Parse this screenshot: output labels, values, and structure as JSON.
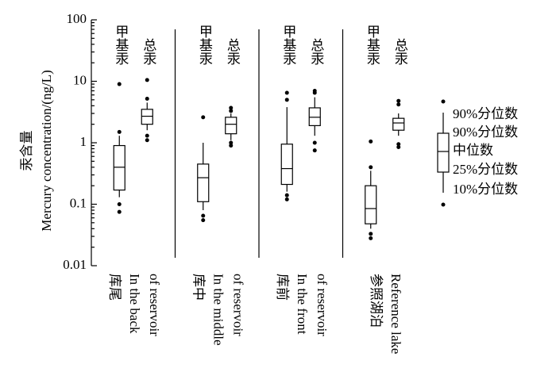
{
  "chart_data": {
    "type": "box",
    "y_label": [
      "汞含量",
      "Mercury concentration/(ng/L)"
    ],
    "log_scale": true,
    "ylim": [
      0.01,
      100
    ],
    "yticks": [
      100,
      10,
      1,
      0.1,
      0.01
    ],
    "categories": [
      [
        "库尾",
        "In the back",
        "of reservoir"
      ],
      [
        "库中",
        "In the middle",
        "of reservoir"
      ],
      [
        "库前",
        "In the front",
        "of reservoir"
      ],
      [
        "参照湖泊",
        "Reference lake"
      ]
    ],
    "series": [
      {
        "name": "甲基汞",
        "boxes": [
          {
            "p10": 0.13,
            "q1": 0.17,
            "median": 0.4,
            "q3": 0.9,
            "p90": 1.3,
            "outliers": [
              9,
              1.5,
              0.1,
              0.075
            ]
          },
          {
            "p10": 0.08,
            "q1": 0.11,
            "median": 0.27,
            "q3": 0.45,
            "p90": 1.0,
            "outliers": [
              2.6,
              0.065,
              0.055
            ]
          },
          {
            "p10": 0.16,
            "q1": 0.21,
            "median": 0.38,
            "q3": 0.95,
            "p90": 3.8,
            "outliers": [
              6.5,
              5,
              0.14,
              0.12
            ]
          },
          {
            "p10": 0.04,
            "q1": 0.048,
            "median": 0.085,
            "q3": 0.2,
            "p90": 0.35,
            "outliers": [
              1.05,
              0.4,
              0.033,
              0.028
            ]
          }
        ]
      },
      {
        "name": "总汞",
        "boxes": [
          {
            "p10": 1.6,
            "q1": 2.0,
            "median": 2.7,
            "q3": 3.5,
            "p90": 4.5,
            "outliers": [
              10.5,
              5.2,
              1.3,
              1.1
            ]
          },
          {
            "p10": 1.1,
            "q1": 1.4,
            "median": 2.0,
            "q3": 2.6,
            "p90": 3.0,
            "outliers": [
              3.7,
              3.3,
              1.0,
              0.9
            ]
          },
          {
            "p10": 1.3,
            "q1": 1.9,
            "median": 2.6,
            "q3": 3.7,
            "p90": 5.5,
            "outliers": [
              7,
              6.5,
              1.0,
              0.75
            ]
          },
          {
            "p10": 1.3,
            "q1": 1.6,
            "median": 2.1,
            "q3": 2.5,
            "p90": 3.0,
            "outliers": [
              4.8,
              4.2,
              0.95,
              0.85
            ]
          }
        ]
      }
    ],
    "legend": [
      "90%分位数",
      "90%分位数",
      "中位数",
      "25%分位数",
      "10%分位数"
    ]
  }
}
